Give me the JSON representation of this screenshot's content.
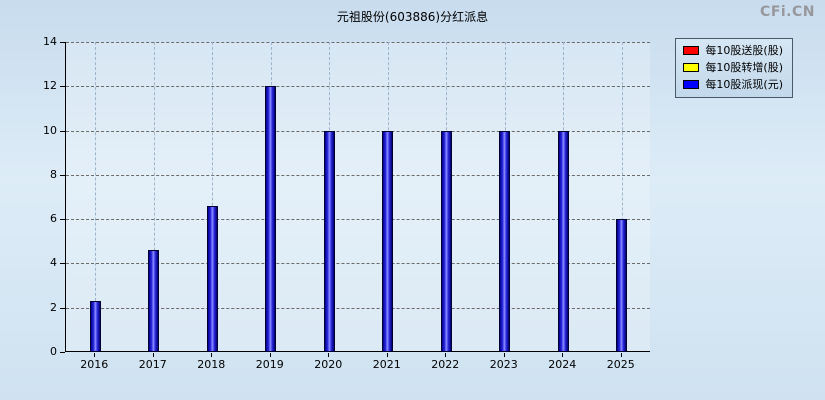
{
  "header": {
    "title": "元祖股份(603886)分红派息",
    "watermark": "CFi.CN"
  },
  "legend": [
    {
      "label": "每10股送股(股)",
      "color": "#ff0000"
    },
    {
      "label": "每10股转增(股)",
      "color": "#ffff00"
    },
    {
      "label": "每10股派现(元)",
      "color": "#0000ff"
    }
  ],
  "chart_data": {
    "type": "bar",
    "title": "元祖股份(603886)分红派息",
    "categories": [
      "2016",
      "2017",
      "2018",
      "2019",
      "2020",
      "2021",
      "2022",
      "2023",
      "2024",
      "2025"
    ],
    "series": [
      {
        "name": "每10股送股(股)",
        "color": "#ff0000",
        "values": [
          0,
          0,
          0,
          0,
          0,
          0,
          0,
          0,
          0,
          0
        ]
      },
      {
        "name": "每10股转增(股)",
        "color": "#ffff00",
        "values": [
          0,
          0,
          0,
          0,
          0,
          0,
          0,
          0,
          0,
          0
        ]
      },
      {
        "name": "每10股派现(元)",
        "color": "#0000ff",
        "values": [
          2.3,
          4.6,
          6.6,
          12,
          10,
          10,
          10,
          10,
          10,
          6
        ]
      }
    ],
    "xlabel": "",
    "ylabel": "",
    "ylim": [
      0,
      14
    ],
    "yticks": [
      0,
      2,
      4,
      6,
      8,
      10,
      12,
      14
    ],
    "grid": true,
    "legend_position": "top-right"
  }
}
